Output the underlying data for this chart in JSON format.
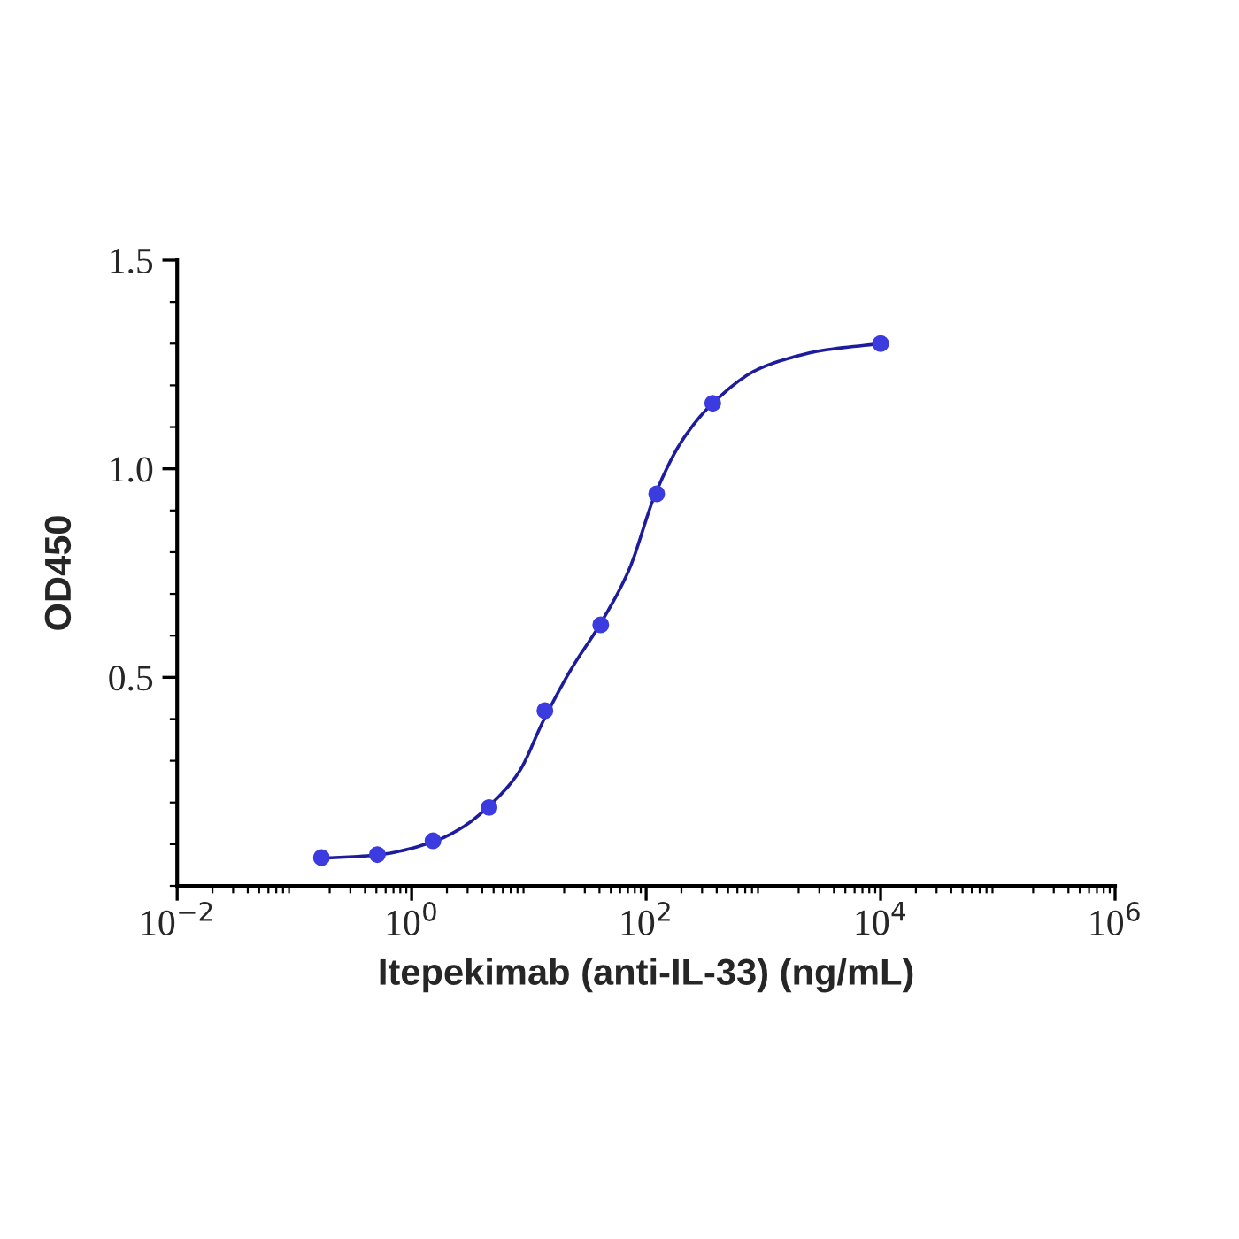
{
  "chart_data": {
    "type": "scatter",
    "xlabel": "Itepekimab (anti-IL-33) (ng/mL)",
    "ylabel": "OD450",
    "log": "x",
    "grid": false,
    "xlim": [
      0.01,
      1000000
    ],
    "ylim": [
      0,
      1.5
    ],
    "xticks": [
      {
        "value": 0.01,
        "label": "10$^{−2}$"
      },
      {
        "value": 1,
        "label": "10$^{0}$"
      },
      {
        "value": 100,
        "label": "10$^{2}$"
      },
      {
        "value": 10000,
        "label": "10$^{4}$"
      },
      {
        "value": 1000000,
        "label": "10$^{6}$"
      }
    ],
    "yticks": [
      {
        "value": 0.5,
        "label": "0.5"
      },
      {
        "value": 1.0,
        "label": "1.0"
      },
      {
        "value": 1.5,
        "label": "1.5"
      }
    ],
    "series": [
      {
        "marker": "circle",
        "color": "#3b3be0",
        "x": [
          0.17,
          0.51,
          1.52,
          4.57,
          13.7,
          41,
          123,
          370,
          10000
        ],
        "values": [
          0.068,
          0.075,
          0.108,
          0.188,
          0.42,
          0.626,
          0.94,
          1.157,
          1.3
        ]
      },
      {
        "type": "line",
        "marker": "none",
        "line_style": "solid",
        "color": "#1c1c9c",
        "x": [
          0.17,
          0.5,
          1.5,
          2.7,
          4.5,
          8.1,
          13.5,
          23,
          41,
          71,
          120,
          200,
          370,
          890,
          1660,
          3090,
          10000
        ],
        "values": [
          0.066,
          0.074,
          0.105,
          0.14,
          0.19,
          0.27,
          0.4,
          0.52,
          0.63,
          0.756,
          0.94,
          1.065,
          1.157,
          1.238,
          1.265,
          1.283,
          1.3
        ]
      }
    ]
  }
}
